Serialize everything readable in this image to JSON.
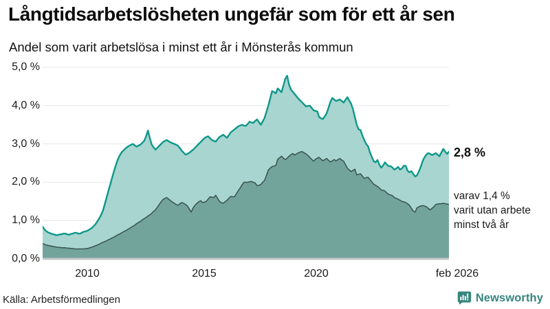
{
  "header": {
    "title": "Långtidsarbetslösheten ungefär som för ett år sen",
    "subtitle": "Andel som varit arbetslösa i minst ett år i Mönsterås kommun"
  },
  "chart_data": {
    "type": "area",
    "title": "Långtidsarbetslösheten ungefär som för ett år sen",
    "subtitle": "Andel som varit arbetslösa i minst ett år i Mönsterås kommun",
    "x_start": "2008-02",
    "x_end": "2026-02",
    "x_interval": "monthly",
    "x_tick_labels": [
      "2010",
      "2015",
      "2020",
      "feb 2026"
    ],
    "y_tick_labels": [
      "0,0 %",
      "1,0 %",
      "2,0 %",
      "3,0 %",
      "4,0 %",
      "5,0 %"
    ],
    "ylim": [
      0,
      5
    ],
    "grid": "horizontal-only",
    "legend_position": "none",
    "series": [
      {
        "name": "Andel som varit arbetslösa i minst ett år",
        "stroke": "#0d9789",
        "fill": "#a8d5cf",
        "stroke_width": 2.4,
        "values": [
          0.84,
          0.77,
          0.72,
          0.69,
          0.67,
          0.65,
          0.64,
          0.62,
          0.62,
          0.64,
          0.64,
          0.66,
          0.66,
          0.64,
          0.63,
          0.65,
          0.66,
          0.68,
          0.68,
          0.66,
          0.66,
          0.69,
          0.71,
          0.72,
          0.74,
          0.77,
          0.8,
          0.85,
          0.9,
          0.97,
          1.05,
          1.14,
          1.25,
          1.42,
          1.6,
          1.78,
          1.95,
          2.13,
          2.3,
          2.46,
          2.6,
          2.7,
          2.78,
          2.83,
          2.88,
          2.92,
          2.95,
          2.98,
          3.0,
          2.96,
          2.93,
          2.96,
          2.98,
          3.03,
          3.08,
          3.2,
          3.35,
          3.15,
          2.98,
          2.91,
          2.85,
          2.9,
          2.95,
          3.0,
          3.05,
          3.08,
          3.1,
          3.07,
          3.04,
          3.02,
          3.0,
          2.98,
          2.95,
          2.89,
          2.82,
          2.77,
          2.72,
          2.74,
          2.77,
          2.81,
          2.85,
          2.9,
          2.95,
          3.0,
          3.05,
          3.1,
          3.15,
          3.18,
          3.2,
          3.15,
          3.1,
          3.08,
          3.06,
          3.12,
          3.18,
          3.21,
          3.24,
          3.2,
          3.16,
          3.23,
          3.3,
          3.34,
          3.38,
          3.42,
          3.46,
          3.48,
          3.5,
          3.48,
          3.47,
          3.52,
          3.58,
          3.56,
          3.55,
          3.6,
          3.64,
          3.57,
          3.5,
          3.59,
          3.68,
          3.84,
          4.0,
          4.19,
          4.38,
          4.35,
          4.32,
          4.45,
          4.4,
          4.35,
          4.52,
          4.7,
          4.78,
          4.55,
          4.42,
          4.36,
          4.3,
          4.24,
          4.18,
          4.13,
          4.08,
          4.03,
          3.98,
          3.99,
          4.0,
          3.94,
          3.88,
          3.86,
          3.85,
          3.7,
          3.67,
          3.65,
          3.72,
          3.8,
          3.95,
          4.1,
          4.2,
          4.16,
          4.12,
          4.14,
          4.16,
          4.12,
          4.08,
          4.15,
          4.22,
          4.13,
          4.05,
          3.9,
          3.7,
          3.5,
          3.38,
          3.36,
          3.22,
          3.1,
          3.0,
          2.94,
          2.78,
          2.66,
          2.55,
          2.52,
          2.58,
          2.46,
          2.38,
          2.44,
          2.52,
          2.46,
          2.42,
          2.42,
          2.38,
          2.33,
          2.36,
          2.4,
          2.33,
          2.36,
          2.43,
          2.43,
          2.3,
          2.26,
          2.29,
          2.22,
          2.15,
          2.18,
          2.28,
          2.4,
          2.55,
          2.65,
          2.72,
          2.76,
          2.74,
          2.71,
          2.73,
          2.76,
          2.72,
          2.68,
          2.78,
          2.87,
          2.8,
          2.74,
          2.8
        ]
      },
      {
        "name": "varav utan arbete minst två år",
        "stroke": "#3c5752",
        "fill": "#72a49c",
        "stroke_width": 1.6,
        "values": [
          0.4,
          0.38,
          0.36,
          0.35,
          0.34,
          0.33,
          0.32,
          0.31,
          0.3,
          0.3,
          0.29,
          0.29,
          0.29,
          0.28,
          0.28,
          0.27,
          0.27,
          0.26,
          0.26,
          0.26,
          0.26,
          0.26,
          0.26,
          0.27,
          0.27,
          0.29,
          0.3,
          0.32,
          0.34,
          0.36,
          0.38,
          0.41,
          0.43,
          0.45,
          0.47,
          0.5,
          0.52,
          0.55,
          0.57,
          0.6,
          0.63,
          0.65,
          0.68,
          0.71,
          0.73,
          0.76,
          0.79,
          0.82,
          0.85,
          0.88,
          0.92,
          0.95,
          0.98,
          1.02,
          1.05,
          1.08,
          1.12,
          1.15,
          1.19,
          1.24,
          1.28,
          1.35,
          1.42,
          1.49,
          1.55,
          1.58,
          1.6,
          1.56,
          1.52,
          1.48,
          1.45,
          1.42,
          1.4,
          1.44,
          1.47,
          1.45,
          1.42,
          1.38,
          1.3,
          1.22,
          1.33,
          1.4,
          1.45,
          1.49,
          1.52,
          1.47,
          1.48,
          1.5,
          1.56,
          1.62,
          1.61,
          1.6,
          1.66,
          1.58,
          1.5,
          1.47,
          1.45,
          1.49,
          1.53,
          1.58,
          1.63,
          1.62,
          1.62,
          1.7,
          1.78,
          1.85,
          1.93,
          2.0,
          2.0,
          2.0,
          2.01,
          2.02,
          2.0,
          1.98,
          1.91,
          1.92,
          1.94,
          2.0,
          2.05,
          2.18,
          2.32,
          2.37,
          2.41,
          2.42,
          2.44,
          2.6,
          2.64,
          2.68,
          2.63,
          2.59,
          2.63,
          2.68,
          2.72,
          2.75,
          2.71,
          2.74,
          2.77,
          2.79,
          2.8,
          2.77,
          2.74,
          2.7,
          2.65,
          2.6,
          2.55,
          2.6,
          2.63,
          2.65,
          2.6,
          2.56,
          2.59,
          2.62,
          2.57,
          2.53,
          2.56,
          2.59,
          2.56,
          2.59,
          2.62,
          2.58,
          2.55,
          2.46,
          2.37,
          2.32,
          2.28,
          2.31,
          2.34,
          2.19,
          2.21,
          2.22,
          2.16,
          2.1,
          2.12,
          2.13,
          2.07,
          2.01,
          1.95,
          1.92,
          1.89,
          1.85,
          1.8,
          1.79,
          1.77,
          1.72,
          1.68,
          1.67,
          1.65,
          1.6,
          1.58,
          1.56,
          1.53,
          1.5,
          1.49,
          1.47,
          1.44,
          1.4,
          1.32,
          1.25,
          1.22,
          1.33,
          1.36,
          1.38,
          1.39,
          1.38,
          1.36,
          1.32,
          1.28,
          1.32,
          1.36,
          1.42,
          1.43,
          1.44,
          1.44,
          1.45,
          1.44,
          1.43,
          1.42
        ]
      }
    ],
    "annotations": {
      "end_value_label": "2,8 %",
      "sub_label_lines": [
        "varav 1,4 %",
        "varit utan arbete",
        "minst två år"
      ]
    }
  },
  "footer": {
    "source": "Källa: Arbetsförmedlingen",
    "brand_name": "Newsworthy"
  },
  "colors": {
    "accent_teal": "#0d9789",
    "light_fill": "#a8d5cf",
    "dark_fill": "#72a49c",
    "dark_line": "#3c5752",
    "grid": "#e7e7ee",
    "baseline": "#c2c8c6",
    "brand_teal": "#37867e"
  }
}
